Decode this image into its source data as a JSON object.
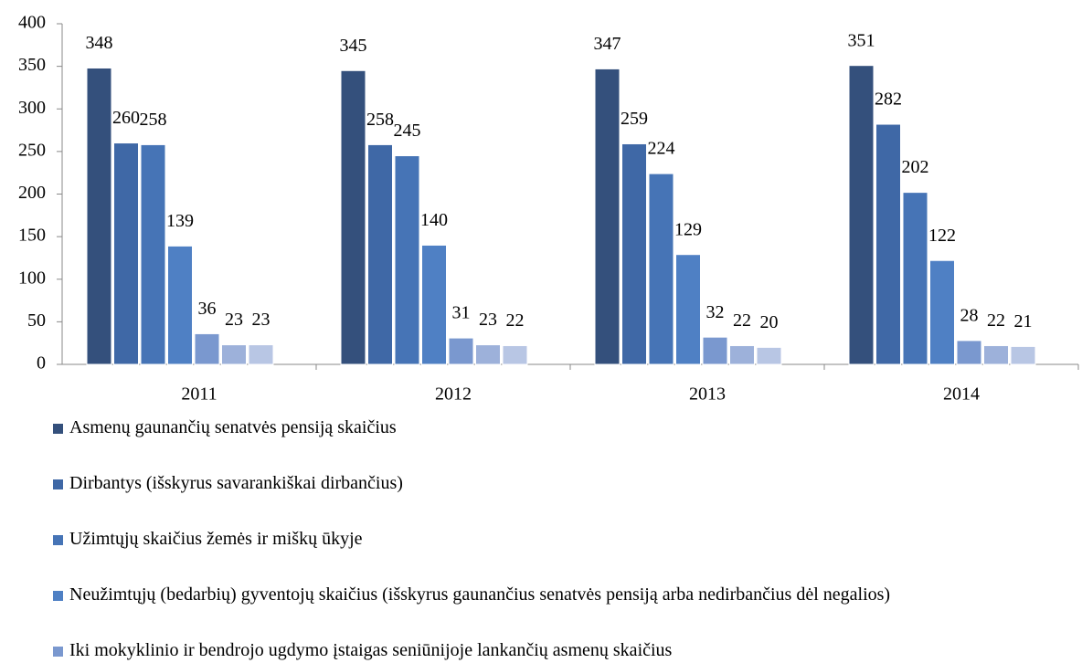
{
  "chart_data": {
    "type": "bar",
    "categories": [
      "2011",
      "2012",
      "2013",
      "2014"
    ],
    "series": [
      {
        "name": "Asmenų gaunančių senatvės pensiją skaičius",
        "color": "#34507c",
        "values": [
          348,
          345,
          347,
          351
        ]
      },
      {
        "name": "Dirbantys (išskyrus savarankiškai dirbančius)",
        "color": "#3f68a6",
        "values": [
          260,
          258,
          259,
          282
        ]
      },
      {
        "name": "Užimtųjų skaičius žemės ir miškų ūkyje",
        "color": "#4674b6",
        "values": [
          258,
          245,
          224,
          202
        ]
      },
      {
        "name": "Neužimtųjų (bedarbių) gyventojų skaičius (išskyrus gaunančius senatvės pensiją arba nedirbančius dėl negalios)",
        "color": "#4f80c4",
        "values": [
          139,
          140,
          129,
          122
        ]
      },
      {
        "name": "Iki mokyklinio ir bendrojo ugdymo įstaigas seniūnijoje lankančių asmenų skaičius",
        "color": "#7a98cf",
        "values": [
          36,
          31,
          32,
          28
        ]
      },
      {
        "color": "#9db1da",
        "values": [
          23,
          23,
          22,
          22
        ]
      },
      {
        "color": "#b8c6e4",
        "values": [
          23,
          22,
          20,
          21
        ]
      }
    ],
    "ylim": [
      0,
      400
    ],
    "yticks": [
      0,
      50,
      100,
      150,
      200,
      250,
      300,
      350,
      400
    ],
    "grid": false
  }
}
